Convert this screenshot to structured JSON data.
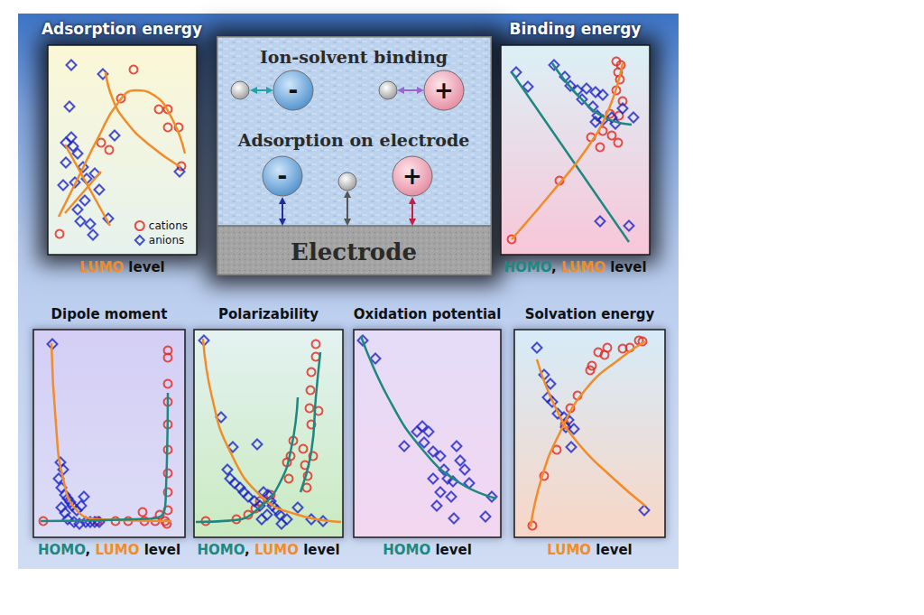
{
  "chart_data": [
    {
      "type": "scatter",
      "title": "Adsorption energy",
      "xlabel": [
        {
          "text": "LUMO",
          "color": "#f28c28"
        },
        {
          "text": " level"
        }
      ],
      "xlim": [
        0,
        165
      ],
      "ylim": [
        0,
        232
      ],
      "tick_labels": false,
      "legend": "lower right",
      "series": [
        {
          "name": "cations",
          "type": "scatter",
          "marker": "circle",
          "color": "#e3261b",
          "x": [
            59,
            68,
            133,
            145,
            123,
            133,
            81,
            95,
            13,
            148
          ],
          "values": [
            124,
            116,
            141,
            141,
            161,
            161,
            173,
            205,
            23,
            98
          ]
        },
        {
          "name": "anions",
          "type": "scatter",
          "marker": "diamond",
          "color": "#1c23c8",
          "x": [
            26,
            61,
            24,
            26,
            20,
            28,
            33,
            20,
            39,
            52,
            43,
            30,
            17,
            57,
            41,
            33,
            67,
            47,
            36,
            50,
            146,
            74
          ],
          "values": [
            210,
            200,
            164,
            130,
            124,
            120,
            112,
            102,
            97,
            90,
            84,
            80,
            77,
            72,
            60,
            50,
            40,
            34,
            37,
            22,
            92,
            132
          ]
        },
        {
          "type": "line",
          "color": "#f28c28",
          "x": [
            12,
            32,
            57,
            77,
            97,
            117,
            137,
            152
          ],
          "values": [
            42,
            82,
            132,
            167,
            182,
            177,
            152,
            112
          ]
        },
        {
          "type": "line",
          "color": "#f28c28",
          "x": [
            64,
            72,
            87,
            112,
            147
          ],
          "values": [
            202,
            172,
            147,
            122,
            97
          ]
        },
        {
          "type": "line",
          "color": "#f28c28",
          "x": [
            19,
            69
          ],
          "values": [
            122,
            32
          ]
        },
        {
          "type": "line",
          "color": "#f28c28",
          "x": [
            19,
            59
          ],
          "values": [
            46,
            92
          ]
        }
      ]
    },
    {
      "type": "scatter",
      "title": "Binding energy",
      "xlabel": [
        {
          "text": "HOMO",
          "color": "#1e8880"
        },
        {
          "text": ", "
        },
        {
          "text": "LUMO",
          "color": "#f28c28"
        },
        {
          "text": " level"
        }
      ],
      "xlim": [
        0,
        165
      ],
      "ylim": [
        0,
        232
      ],
      "tick_labels": false,
      "series": [
        {
          "name": "cations",
          "type": "scatter",
          "marker": "circle",
          "color": "#e3261b",
          "x": [
            128,
            133,
            130,
            132,
            128,
            135,
            121,
            131,
            113,
            100,
            130,
            110,
            123,
            65,
            12
          ],
          "values": [
            214,
            210,
            202,
            194,
            182,
            170,
            156,
            154,
            137,
            130,
            124,
            119,
            132,
            82,
            17
          ]
        },
        {
          "name": "anions",
          "type": "scatter",
          "marker": "diamond",
          "color": "#1c23c8",
          "x": [
            17,
            30,
            59,
            71,
            77,
            85,
            95,
            105,
            113,
            102,
            107,
            105,
            113,
            123,
            135,
            147,
            127,
            90,
            110,
            142
          ],
          "values": [
            202,
            186,
            210,
            197,
            187,
            182,
            184,
            180,
            177,
            164,
            154,
            147,
            149,
            152,
            162,
            152,
            145,
            172,
            37,
            32
          ]
        },
        {
          "type": "line",
          "color": "#1e8880",
          "x": [
            12,
            142
          ],
          "values": [
            202,
            14
          ]
        },
        {
          "type": "line",
          "color": "#1e8880",
          "x": [
            57,
            85,
            115,
            145
          ],
          "values": [
            212,
            177,
            152,
            144
          ]
        },
        {
          "type": "line",
          "color": "#f28c28",
          "x": [
            12,
            55,
            95,
            120,
            135
          ],
          "values": [
            17,
            67,
            117,
            162,
            212
          ]
        }
      ]
    },
    {
      "type": "scatter",
      "title": "Dipole moment",
      "xlabel": [
        {
          "text": "HOMO",
          "color": "#1e8880"
        },
        {
          "text": ", "
        },
        {
          "text": "LUMO",
          "color": "#f28c28"
        },
        {
          "text": " level"
        }
      ],
      "xlim": [
        0,
        168
      ],
      "ylim": [
        0,
        230
      ],
      "tick_labels": false,
      "series": [
        {
          "name": "cations",
          "type": "scatter",
          "marker": "circle",
          "color": "#e3261b",
          "x": [
            11,
            71,
            91,
            105,
            121,
            123,
            135,
            146,
            148,
            149,
            149,
            149,
            149,
            149,
            149,
            149,
            149,
            149,
            140
          ],
          "values": [
            18,
            18,
            18,
            18,
            28,
            18,
            18,
            18,
            15,
            207,
            199,
            170,
            150,
            125,
            97,
            71,
            50,
            30,
            25
          ]
        },
        {
          "name": "anions",
          "type": "scatter",
          "marker": "diamond",
          "color": "#1c23c8",
          "x": [
            21,
            30,
            33,
            28,
            31,
            35,
            38,
            41,
            43,
            48,
            53,
            56,
            38,
            45,
            51,
            58,
            63,
            68,
            73,
            31,
            35
          ],
          "values": [
            214,
            83,
            75,
            65,
            55,
            47,
            43,
            39,
            35,
            30,
            35,
            45,
            20,
            17,
            15,
            17,
            17,
            17,
            17,
            33,
            27
          ]
        },
        {
          "type": "line",
          "color": "#f28c28",
          "x": [
            20,
            25,
            33,
            48,
            73,
            153
          ],
          "values": [
            215,
            125,
            65,
            30,
            20,
            18
          ]
        },
        {
          "type": "line",
          "color": "#1e8880",
          "x": [
            8,
            113,
            143,
            147,
            149
          ],
          "values": [
            18,
            20,
            25,
            55,
            160
          ]
        }
      ]
    },
    {
      "type": "scatter",
      "title": "Polarizability",
      "xlabel": [
        {
          "text": "HOMO",
          "color": "#1e8880"
        },
        {
          "text": ", "
        },
        {
          "text": "LUMO",
          "color": "#f28c28"
        },
        {
          "text": " level"
        }
      ],
      "xlim": [
        0,
        165
      ],
      "ylim": [
        0,
        230
      ],
      "tick_labels": false,
      "series": [
        {
          "name": "cations",
          "type": "scatter",
          "marker": "circle",
          "color": "#e3261b",
          "x": [
            13,
            47,
            60,
            68,
            73,
            85,
            105,
            107,
            110,
            103,
            121,
            123,
            126,
            125,
            132,
            130,
            128,
            129,
            135,
            135,
            138,
            130
          ],
          "values": [
            18,
            20,
            25,
            32,
            40,
            47,
            65,
            90,
            107,
            83,
            98,
            80,
            68,
            55,
            90,
            125,
            143,
            163,
            200,
            214,
            140,
            183
          ]
        },
        {
          "name": "anions",
          "type": "scatter",
          "marker": "diamond",
          "color": "#1c23c8",
          "x": [
            11,
            30,
            43,
            70,
            37,
            40,
            45,
            51,
            55,
            60,
            67,
            73,
            77,
            82,
            85,
            87,
            92,
            95,
            97,
            81,
            75,
            103,
            115,
            130,
            143
          ],
          "values": [
            218,
            133,
            100,
            103,
            75,
            65,
            60,
            55,
            50,
            45,
            40,
            35,
            50,
            47,
            40,
            35,
            30,
            25,
            15,
            25,
            20,
            20,
            33,
            20,
            18
          ]
        },
        {
          "type": "line",
          "color": "#f28c28",
          "x": [
            10,
            20,
            40,
            75,
            115,
            163
          ],
          "values": [
            220,
            155,
            95,
            45,
            25,
            17
          ]
        },
        {
          "type": "line",
          "color": "#1e8880",
          "x": [
            2,
            45,
            75,
            95,
            108,
            115
          ],
          "values": [
            17,
            19,
            35,
            60,
            100,
            155
          ]
        },
        {
          "type": "line",
          "color": "#1e8880",
          "x": [
            118,
            130,
            135,
            140
          ],
          "values": [
            50,
            95,
            155,
            205
          ]
        }
      ]
    },
    {
      "type": "scatter",
      "title": "Oxidation potential",
      "xlabel": [
        {
          "text": "HOMO",
          "color": "#1e8880"
        },
        {
          "text": " level"
        }
      ],
      "xlim": [
        0,
        163
      ],
      "ylim": [
        0,
        230
      ],
      "tick_labels": false,
      "series": [
        {
          "name": "anions",
          "type": "scatter",
          "marker": "diamond",
          "color": "#1c23c8",
          "x": [
            10,
            24,
            56,
            70,
            76,
            83,
            78,
            88,
            96,
            100,
            104,
            110,
            114,
            118,
            123,
            128,
            88,
            96,
            92,
            108,
            111,
            146,
            153
          ],
          "values": [
            218,
            198,
            101,
            117,
            123,
            117,
            105,
            95,
            90,
            75,
            65,
            62,
            101,
            85,
            75,
            60,
            65,
            50,
            35,
            45,
            21,
            23,
            45
          ]
        },
        {
          "type": "line",
          "color": "#1e8880",
          "x": [
            8,
            38,
            78,
            118,
            158
          ],
          "values": [
            223,
            155,
            95,
            60,
            43
          ]
        }
      ]
    },
    {
      "type": "scatter",
      "title": "Solvation energy",
      "xlabel": [
        {
          "text": "LUMO",
          "color": "#f28c28"
        },
        {
          "text": " level"
        }
      ],
      "xlim": [
        0,
        167
      ],
      "ylim": [
        0,
        230
      ],
      "tick_labels": false,
      "series": [
        {
          "name": "cations",
          "type": "scatter",
          "marker": "circle",
          "color": "#e3261b",
          "x": [
            20,
            33,
            47,
            56,
            62,
            70,
            86,
            93,
            100,
            103,
            120,
            128,
            138,
            142,
            84
          ],
          "values": [
            13,
            68,
            97,
            125,
            143,
            157,
            190,
            205,
            202,
            210,
            209,
            210,
            218,
            217,
            185
          ]
        },
        {
          "name": "anions",
          "type": "scatter",
          "marker": "diamond",
          "color": "#1c23c8",
          "x": [
            25,
            33,
            37,
            42,
            40,
            48,
            55,
            60,
            57,
            66,
            63,
            144
          ],
          "values": [
            210,
            180,
            155,
            150,
            170,
            137,
            133,
            130,
            122,
            120,
            100,
            30
          ]
        },
        {
          "type": "line",
          "color": "#f28c28",
          "x": [
            18,
            30,
            50,
            80,
            120,
            145
          ],
          "values": [
            12,
            65,
            115,
            165,
            200,
            217
          ]
        },
        {
          "type": "line",
          "color": "#f28c28",
          "x": [
            25,
            45,
            70,
            110,
            145
          ],
          "values": [
            197,
            145,
            105,
            65,
            35
          ]
        }
      ]
    }
  ],
  "diagram": {
    "top_label": "Ion-solvent binding",
    "bottom_label": "Adsorption on electrode",
    "electrode": "Electrode",
    "anion_sign": "-",
    "cation_sign": "+"
  }
}
